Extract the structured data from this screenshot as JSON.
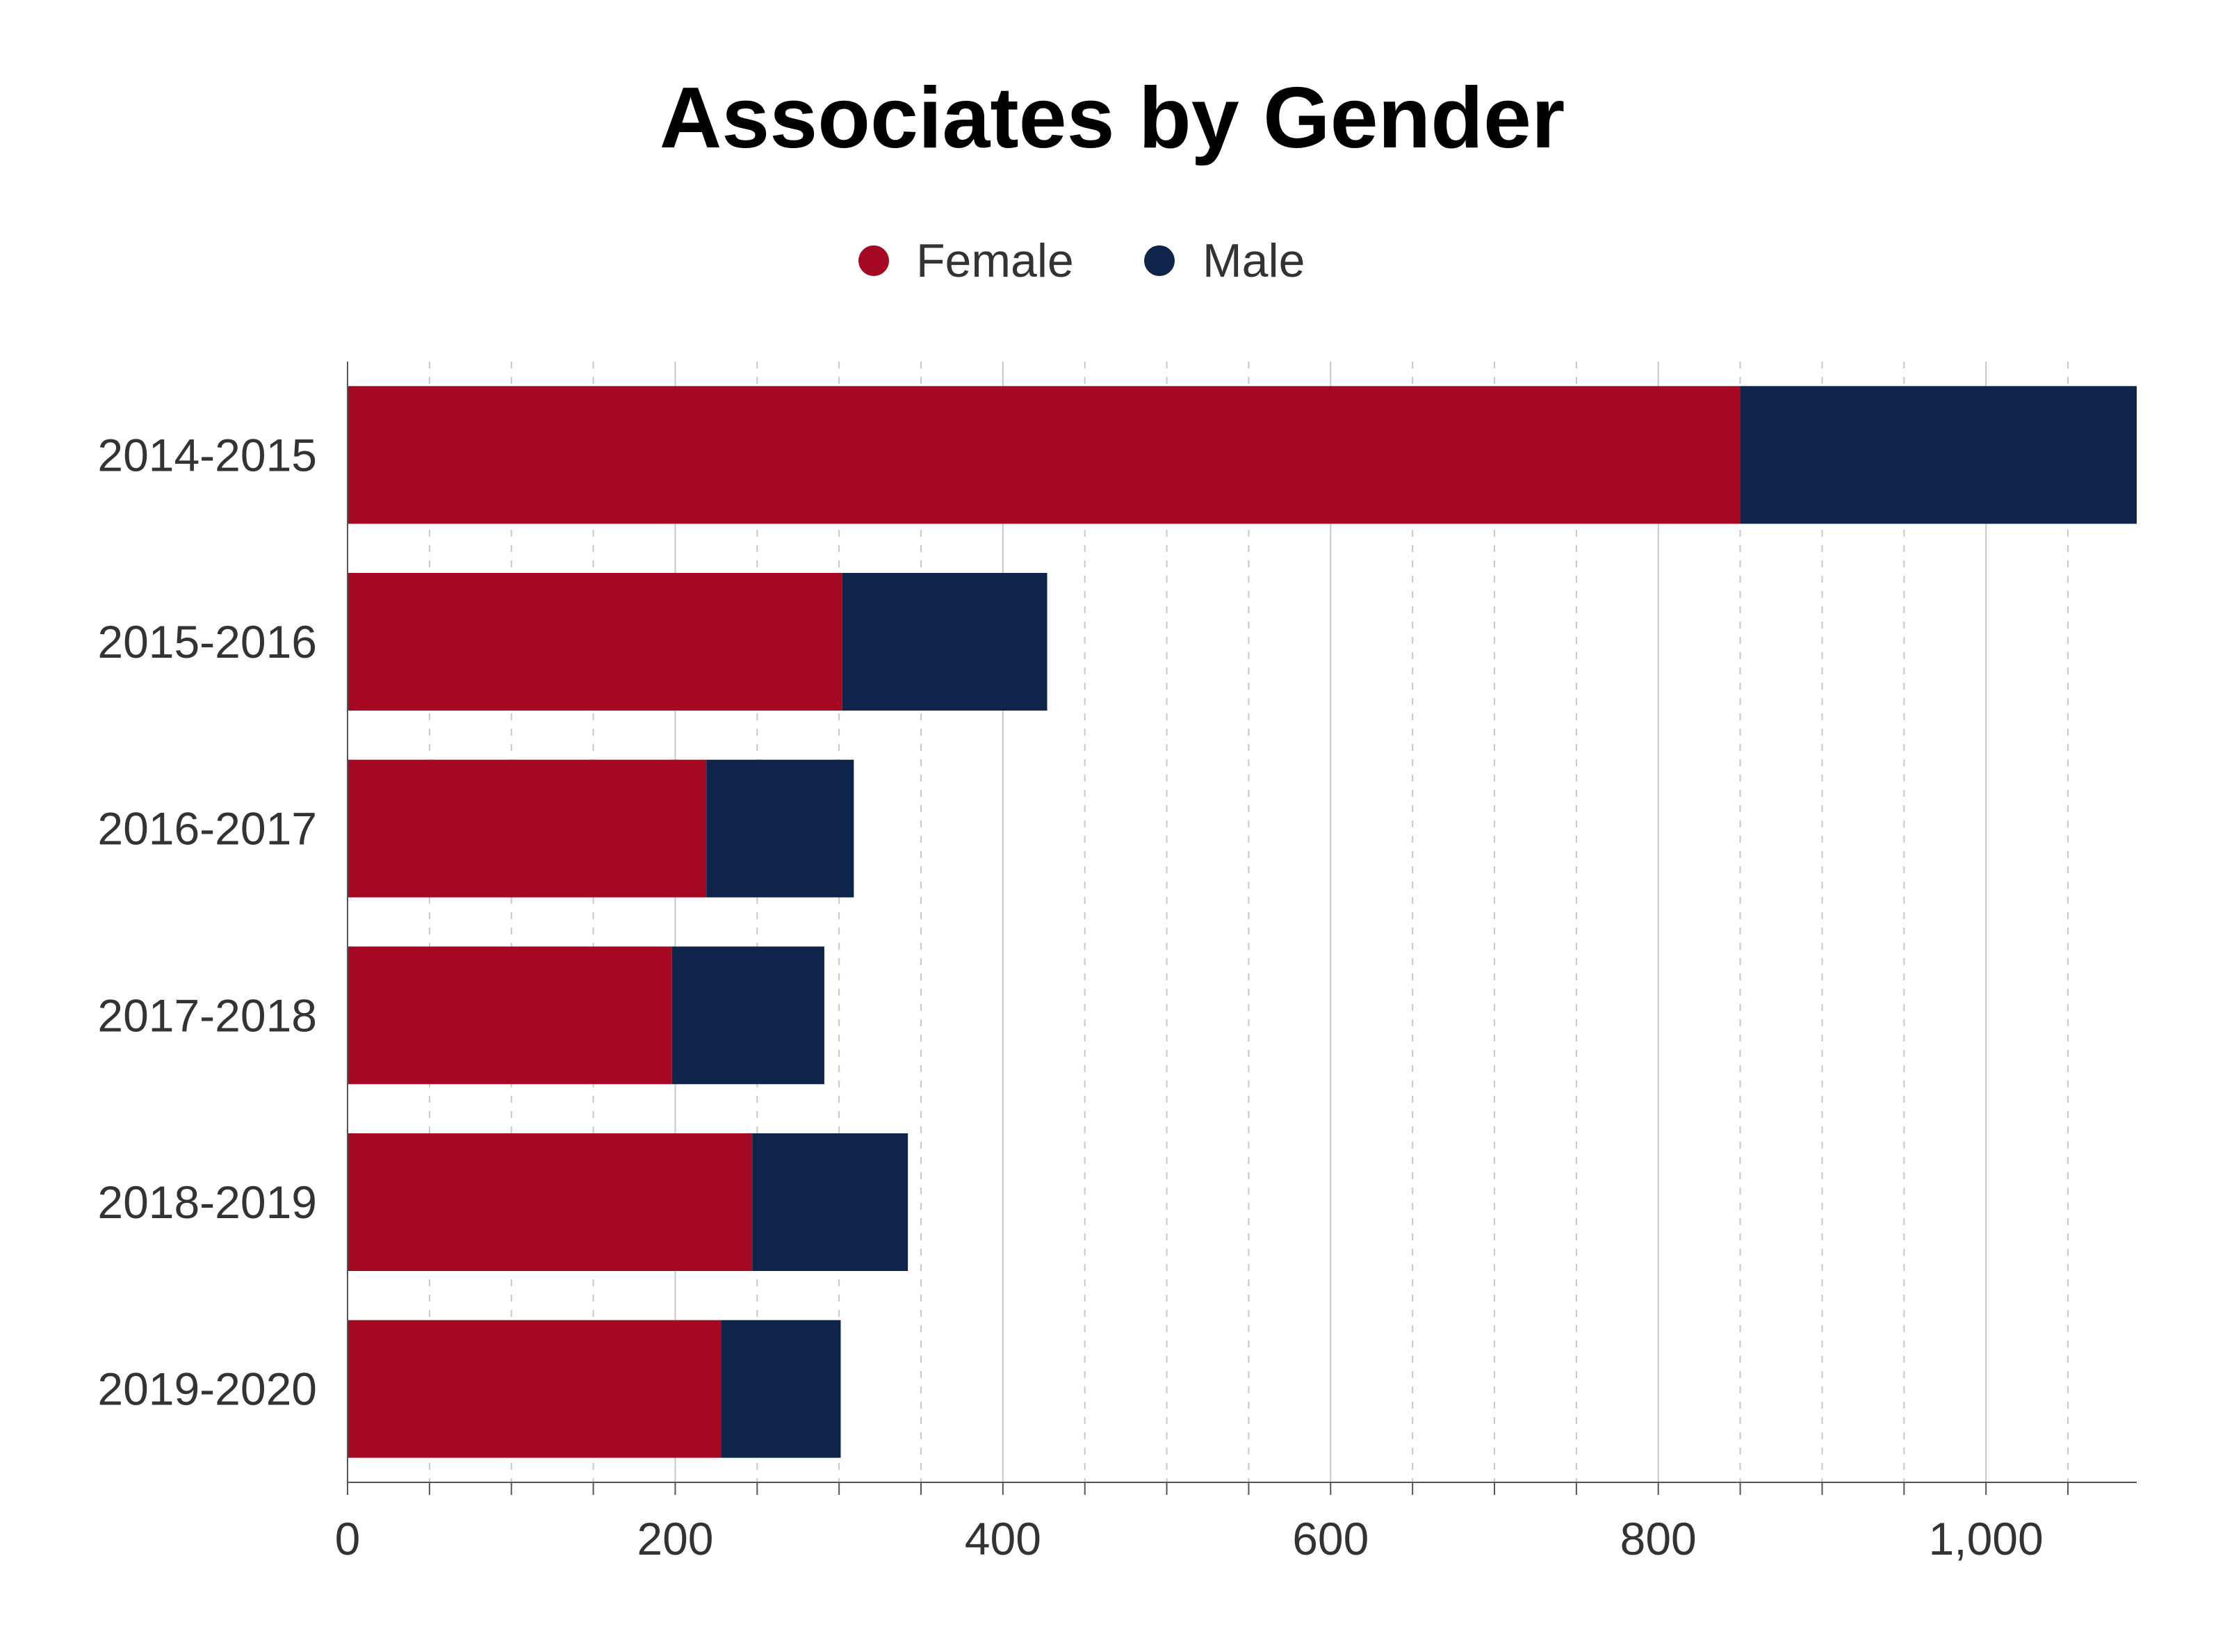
{
  "chart_data": {
    "type": "bar",
    "orientation": "horizontal",
    "stacked": true,
    "title": "Associates by Gender",
    "xlabel": "",
    "ylabel": "",
    "categories": [
      "2014-2015",
      "2015-2016",
      "2016-2017",
      "2017-2018",
      "2018-2019",
      "2019-2020"
    ],
    "series": [
      {
        "name": "Female",
        "color": "#A50822",
        "values": [
          850,
          302,
          219,
          198,
          247,
          228
        ]
      },
      {
        "name": "Male",
        "color": "#0E244B",
        "values": [
          242,
          125,
          90,
          93,
          95,
          73
        ]
      }
    ],
    "xlim": [
      0,
      1092
    ],
    "xticks": [
      0,
      200,
      400,
      600,
      800,
      1000
    ],
    "xtick_labels": [
      "0",
      "200",
      "400",
      "600",
      "800",
      "1,000"
    ],
    "minor_tick_step": 50,
    "grid": true,
    "legend_position": "top-center"
  }
}
